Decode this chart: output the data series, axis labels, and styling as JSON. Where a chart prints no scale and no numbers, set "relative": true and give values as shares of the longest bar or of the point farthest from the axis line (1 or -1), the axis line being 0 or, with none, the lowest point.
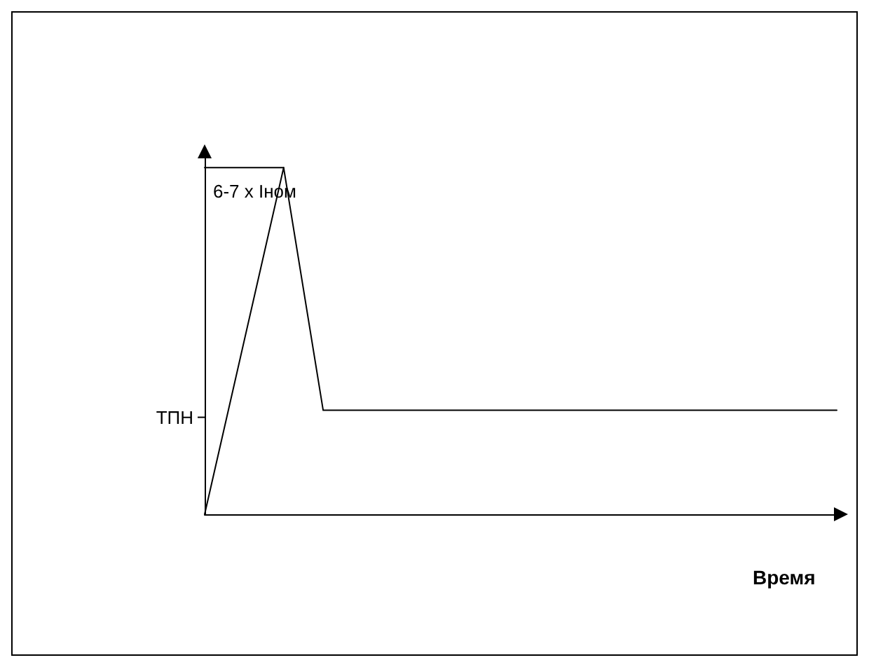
{
  "chart_data": {
    "type": "line",
    "relative": true,
    "xlabel": "Время",
    "ylabel": "6-7 x Iном",
    "categories": [
      null,
      null,
      null,
      null,
      null,
      null,
      null,
      null,
      null,
      null,
      null,
      null,
      null,
      null,
      null,
      null,
      null
    ],
    "series": [
      {
        "color": "#000000",
        "values": [
          0,
          null,
          1,
          0.3,
          null,
          null,
          null,
          null,
          null,
          null,
          null,
          null,
          null,
          null,
          null,
          null,
          0.3
        ]
      },
      {
        "color": "#000000",
        "values": [
          1,
          null,
          1,
          null,
          null,
          null,
          null,
          null,
          null,
          null,
          null,
          null,
          null,
          null,
          null,
          null,
          null
        ]
      }
    ],
    "annotations": [
      "ТПН"
    ],
    "grid": false,
    "marker": "none",
    "line_style": "solid"
  }
}
